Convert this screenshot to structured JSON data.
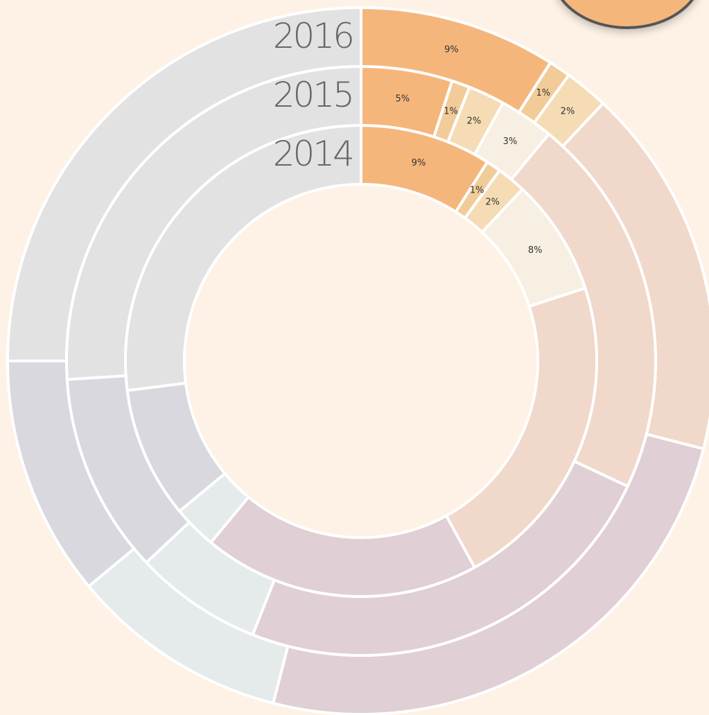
{
  "chart_data": {
    "type": "donut",
    "series": [
      {
        "label": "2014",
        "values": [
          9,
          1,
          2,
          8,
          22,
          19,
          3,
          9,
          27
        ],
        "value_labels": [
          "9%",
          "1%",
          "2%",
          "8%",
          null,
          null,
          null,
          null,
          null
        ],
        "colors": [
          "#f5b67c",
          "#f2cc98",
          "#f5dcb5",
          "#f8efe3",
          "#f0d8cb",
          "#e0cfd4",
          "#e5eaea",
          "#d8d8de",
          "#e2e2e2"
        ]
      },
      {
        "label": "2015",
        "values": [
          5,
          1,
          2,
          3,
          21,
          24,
          7,
          11,
          26
        ],
        "value_labels": [
          "5%",
          "1%",
          "2%",
          "3%",
          null,
          null,
          null,
          null,
          null
        ],
        "colors": [
          "#f5b67c",
          "#f2cc98",
          "#f5dcb5",
          "#f8efe3",
          "#f0d8cb",
          "#e0cfd4",
          "#e5eaea",
          "#d8d8de",
          "#e2e2e2"
        ]
      },
      {
        "label": "2016",
        "values": [
          9,
          1,
          2,
          17,
          25,
          10,
          11,
          25
        ],
        "value_labels": [
          "9%",
          "1%",
          "2%",
          null,
          null,
          null,
          null,
          null
        ],
        "colors": [
          "#f5b67c",
          "#f2cc98",
          "#f5dcb5",
          "#f0d8cb",
          "#e0cfd4",
          "#e5eaea",
          "#d8d8de",
          "#e2e2e2"
        ]
      }
    ]
  }
}
